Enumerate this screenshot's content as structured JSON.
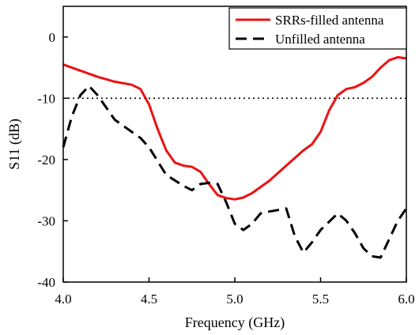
{
  "chart_data": {
    "type": "line",
    "title": "",
    "xlabel": "Frequency (GHz)",
    "ylabel": "S11 (dB)",
    "xlim": [
      4.0,
      6.0
    ],
    "ylim": [
      -40,
      5
    ],
    "xticks": [
      4.0,
      4.5,
      5.0,
      5.5,
      6.0
    ],
    "xtick_labels": [
      "4.0",
      "4.5",
      "5.0",
      "5.5",
      "6.0"
    ],
    "yticks": [
      0,
      -10,
      -20,
      -30,
      -40
    ],
    "ytick_labels": [
      "0",
      "-10",
      "-20",
      "-30",
      "-40"
    ],
    "grid": false,
    "legend_position": "top-right",
    "reference_line": {
      "y": -10,
      "style": "dotted",
      "color": "#000000"
    },
    "series": [
      {
        "name": "SRRs-filled antenna",
        "color": "#ee1111",
        "style": "solid",
        "x": [
          4.0,
          4.1,
          4.2,
          4.3,
          4.4,
          4.45,
          4.5,
          4.55,
          4.6,
          4.65,
          4.7,
          4.75,
          4.8,
          4.85,
          4.9,
          4.95,
          5.0,
          5.05,
          5.1,
          5.2,
          5.3,
          5.4,
          5.45,
          5.5,
          5.55,
          5.6,
          5.65,
          5.7,
          5.75,
          5.8,
          5.85,
          5.9,
          5.95,
          6.0
        ],
        "y": [
          -4.5,
          -5.5,
          -6.5,
          -7.3,
          -7.8,
          -8.5,
          -11.0,
          -15.0,
          -18.5,
          -20.5,
          -21.0,
          -21.2,
          -22.0,
          -24.0,
          -25.8,
          -26.3,
          -26.5,
          -26.2,
          -25.5,
          -23.5,
          -21.0,
          -18.5,
          -17.5,
          -15.5,
          -12.0,
          -9.5,
          -8.5,
          -8.2,
          -7.5,
          -6.5,
          -5.0,
          -3.8,
          -3.3,
          -3.5
        ]
      },
      {
        "name": "Unfilled antenna",
        "color": "#000000",
        "style": "dashed",
        "x": [
          4.0,
          4.05,
          4.1,
          4.15,
          4.2,
          4.25,
          4.3,
          4.4,
          4.45,
          4.5,
          4.6,
          4.7,
          4.75,
          4.8,
          4.85,
          4.9,
          4.95,
          5.0,
          5.05,
          5.1,
          5.15,
          5.2,
          5.3,
          5.35,
          5.4,
          5.45,
          5.5,
          5.6,
          5.65,
          5.7,
          5.75,
          5.8,
          5.85,
          5.9,
          5.95,
          6.0
        ],
        "y": [
          -18.0,
          -13.0,
          -9.5,
          -8.0,
          -9.5,
          -11.5,
          -13.5,
          -15.5,
          -16.5,
          -18.0,
          -22.5,
          -24.3,
          -25.0,
          -24.0,
          -23.8,
          -24.0,
          -27.0,
          -30.5,
          -31.5,
          -30.5,
          -28.8,
          -28.5,
          -28.0,
          -32.5,
          -35.2,
          -33.5,
          -31.5,
          -28.8,
          -30.0,
          -32.0,
          -34.5,
          -35.8,
          -36.0,
          -33.0,
          -30.0,
          -28.0
        ]
      }
    ]
  }
}
